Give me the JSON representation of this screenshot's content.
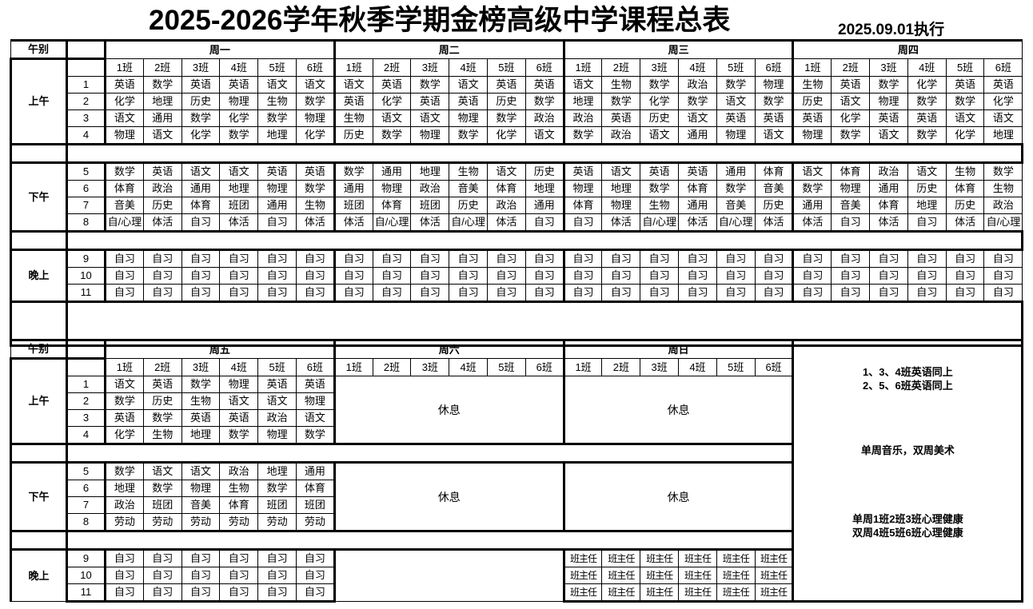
{
  "title": "2025-2026学年秋季学期金榜高级中学课程总表",
  "effective": "2025.09.01执行",
  "labels": {
    "period_col": "午别",
    "morning": "上午",
    "afternoon": "下午",
    "evening": "晚上",
    "rest": "休息"
  },
  "classes": [
    "1班",
    "2班",
    "3班",
    "4班",
    "5班",
    "6班"
  ],
  "periods": {
    "morning": [
      "1",
      "2",
      "3",
      "4"
    ],
    "afternoon": [
      "5",
      "6",
      "7",
      "8"
    ],
    "evening": [
      "9",
      "10",
      "11"
    ]
  },
  "days": [
    {
      "name": "周一",
      "morning": [
        [
          "英语",
          "数学",
          "英语",
          "英语",
          "语文",
          "语文"
        ],
        [
          "化学",
          "地理",
          "历史",
          "物理",
          "生物",
          "数学"
        ],
        [
          "语文",
          "通用",
          "数学",
          "化学",
          "数学",
          "物理"
        ],
        [
          "物理",
          "语文",
          "化学",
          "数学",
          "地理",
          "化学"
        ]
      ],
      "afternoon": [
        [
          "数学",
          "英语",
          "语文",
          "语文",
          "英语",
          "英语"
        ],
        [
          "体育",
          "政治",
          "通用",
          "地理",
          "物理",
          "数学"
        ],
        [
          "音美",
          "历史",
          "体育",
          "班团",
          "通用",
          "生物"
        ],
        [
          "自/心理",
          "体活",
          "自习",
          "体活",
          "自习",
          "体活"
        ]
      ],
      "evening": [
        [
          "自习",
          "自习",
          "自习",
          "自习",
          "自习",
          "自习"
        ],
        [
          "自习",
          "自习",
          "自习",
          "自习",
          "自习",
          "自习"
        ],
        [
          "自习",
          "自习",
          "自习",
          "自习",
          "自习",
          "自习"
        ]
      ]
    },
    {
      "name": "周二",
      "morning": [
        [
          "语文",
          "英语",
          "数学",
          "语文",
          "英语",
          "英语"
        ],
        [
          "英语",
          "化学",
          "英语",
          "英语",
          "历史",
          "数学"
        ],
        [
          "生物",
          "语文",
          "语文",
          "物理",
          "数学",
          "政治"
        ],
        [
          "历史",
          "数学",
          "物理",
          "数学",
          "化学",
          "语文"
        ]
      ],
      "afternoon": [
        [
          "数学",
          "通用",
          "地理",
          "生物",
          "语文",
          "历史"
        ],
        [
          "通用",
          "物理",
          "政治",
          "音美",
          "体育",
          "地理"
        ],
        [
          "班团",
          "体育",
          "班团",
          "历史",
          "政治",
          "通用"
        ],
        [
          "体活",
          "自/心理",
          "体活",
          "自/心理",
          "体活",
          "自习"
        ]
      ],
      "evening": [
        [
          "自习",
          "自习",
          "自习",
          "自习",
          "自习",
          "自习"
        ],
        [
          "自习",
          "自习",
          "自习",
          "自习",
          "自习",
          "自习"
        ],
        [
          "自习",
          "自习",
          "自习",
          "自习",
          "自习",
          "自习"
        ]
      ]
    },
    {
      "name": "周三",
      "morning": [
        [
          "语文",
          "生物",
          "数学",
          "政治",
          "数学",
          "物理"
        ],
        [
          "地理",
          "数学",
          "化学",
          "数学",
          "语文",
          "数学"
        ],
        [
          "政治",
          "英语",
          "历史",
          "语文",
          "英语",
          "英语"
        ],
        [
          "数学",
          "政治",
          "语文",
          "通用",
          "物理",
          "语文"
        ]
      ],
      "afternoon": [
        [
          "英语",
          "语文",
          "英语",
          "英语",
          "通用",
          "体育"
        ],
        [
          "物理",
          "地理",
          "数学",
          "体育",
          "数学",
          "音美"
        ],
        [
          "体育",
          "物理",
          "生物",
          "通用",
          "音美",
          "历史"
        ],
        [
          "自习",
          "体活",
          "自/心理",
          "体活",
          "自/心理",
          "体活"
        ]
      ],
      "evening": [
        [
          "自习",
          "自习",
          "自习",
          "自习",
          "自习",
          "自习"
        ],
        [
          "自习",
          "自习",
          "自习",
          "自习",
          "自习",
          "自习"
        ],
        [
          "自习",
          "自习",
          "自习",
          "自习",
          "自习",
          "自习"
        ]
      ]
    },
    {
      "name": "周四",
      "morning": [
        [
          "生物",
          "英语",
          "数学",
          "化学",
          "英语",
          "英语"
        ],
        [
          "历史",
          "语文",
          "物理",
          "数学",
          "数学",
          "化学"
        ],
        [
          "英语",
          "化学",
          "英语",
          "英语",
          "语文",
          "语文"
        ],
        [
          "物理",
          "数学",
          "语文",
          "数学",
          "化学",
          "地理"
        ]
      ],
      "afternoon": [
        [
          "语文",
          "体育",
          "政治",
          "语文",
          "生物",
          "数学"
        ],
        [
          "数学",
          "物理",
          "通用",
          "历史",
          "体育",
          "生物"
        ],
        [
          "通用",
          "音美",
          "体育",
          "地理",
          "历史",
          "政治"
        ],
        [
          "体活",
          "自习",
          "体活",
          "自习",
          "体活",
          "自/心理"
        ]
      ],
      "evening": [
        [
          "自习",
          "自习",
          "自习",
          "自习",
          "自习",
          "自习"
        ],
        [
          "自习",
          "自习",
          "自习",
          "自习",
          "自习",
          "自习"
        ],
        [
          "自习",
          "自习",
          "自习",
          "自习",
          "自习",
          "自习"
        ]
      ]
    },
    {
      "name": "周五",
      "morning": [
        [
          "语文",
          "英语",
          "数学",
          "物理",
          "英语",
          "英语"
        ],
        [
          "数学",
          "历史",
          "生物",
          "语文",
          "语文",
          "物理"
        ],
        [
          "英语",
          "数学",
          "英语",
          "英语",
          "政治",
          "语文"
        ],
        [
          "化学",
          "生物",
          "地理",
          "数学",
          "物理",
          "数学"
        ]
      ],
      "afternoon": [
        [
          "数学",
          "语文",
          "语文",
          "政治",
          "地理",
          "通用"
        ],
        [
          "地理",
          "数学",
          "物理",
          "生物",
          "数学",
          "体育"
        ],
        [
          "政治",
          "班团",
          "音美",
          "体育",
          "班团",
          "班团"
        ],
        [
          "劳动",
          "劳动",
          "劳动",
          "劳动",
          "劳动",
          "劳动"
        ]
      ],
      "evening": [
        [
          "自习",
          "自习",
          "自习",
          "自习",
          "自习",
          "自习"
        ],
        [
          "自习",
          "自习",
          "自习",
          "自习",
          "自习",
          "自习"
        ],
        [
          "自习",
          "自习",
          "自习",
          "自习",
          "自习",
          "自习"
        ]
      ]
    }
  ],
  "weekend": [
    {
      "name": "周六",
      "morning": "休息",
      "afternoon": "休息"
    },
    {
      "name": "周日",
      "morning": "休息",
      "afternoon": "休息",
      "evening": [
        [
          "班主任",
          "班主任",
          "班主任",
          "班主任",
          "班主任",
          "班主任"
        ],
        [
          "班主任",
          "班主任",
          "班主任",
          "班主任",
          "班主任",
          "班主任"
        ],
        [
          "班主任",
          "班主任",
          "班主任",
          "班主任",
          "班主任",
          "班主任"
        ]
      ]
    }
  ],
  "notes": [
    [
      "1、3、4班英语同上",
      "2、5、6班英语同上"
    ],
    [
      "单周音乐，双周美术"
    ],
    [
      "单周1班2班3班心理健康",
      "双周4班5班6班心理健康"
    ]
  ]
}
